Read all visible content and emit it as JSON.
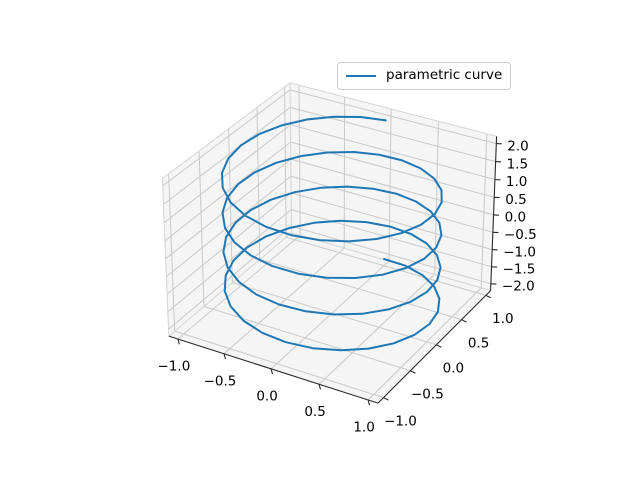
{
  "figure": {
    "background": "#ffffff"
  },
  "legend": {
    "label": "parametric curve",
    "position": "upper right"
  },
  "chart_data": {
    "type": "line",
    "projection": "3d",
    "grid": true,
    "series": [
      {
        "name": "parametric curve",
        "color": "#1f77b4",
        "line_width": 2,
        "parametric": {
          "theta_start": -12.566370614359172,
          "theta_end": 12.566370614359172,
          "n_points": 100,
          "radius": 1,
          "z_start": -2,
          "z_end": 2,
          "x_formula": "r * sin(theta)",
          "y_formula": "r * cos(theta)",
          "z_formula": "linear from z_start to z_end"
        }
      }
    ],
    "axes": {
      "x": {
        "limits": [
          -1.1,
          1.1
        ],
        "ticks": [
          -1.0,
          -0.5,
          0.0,
          0.5,
          1.0
        ],
        "tick_labels": [
          "−1.0",
          "−0.5",
          "0.0",
          "0.5",
          "1.0"
        ]
      },
      "y": {
        "limits": [
          -1.1,
          1.1
        ],
        "ticks": [
          -1.0,
          -0.5,
          0.0,
          0.5,
          1.0
        ],
        "tick_labels": [
          "−1.0",
          "−0.5",
          "0.0",
          "0.5",
          "1.0"
        ]
      },
      "z": {
        "limits": [
          -2.2,
          2.2
        ],
        "ticks": [
          -2.0,
          -1.5,
          -1.0,
          -0.5,
          0.0,
          0.5,
          1.0,
          1.5,
          2.0
        ],
        "tick_labels": [
          "−2.0",
          "−1.5",
          "−1.0",
          "−0.5",
          "0.0",
          "0.5",
          "1.0",
          "1.5",
          "2.0"
        ]
      }
    },
    "view": {
      "elev": 30,
      "azim": -60,
      "dist": 10,
      "box_aspect": [
        1,
        1,
        0.75
      ]
    },
    "style": {
      "pane_color": "#f5f5f5",
      "grid_color": "#c9c9c9",
      "pane_edge_color": "#d4d4d4",
      "axis_line_color": "#2b2b2b",
      "tick_color": "#2b2b2b",
      "tick_label_color": "#000000",
      "legend_border_color": "#cccccc",
      "legend_background": "#ffffff"
    }
  }
}
